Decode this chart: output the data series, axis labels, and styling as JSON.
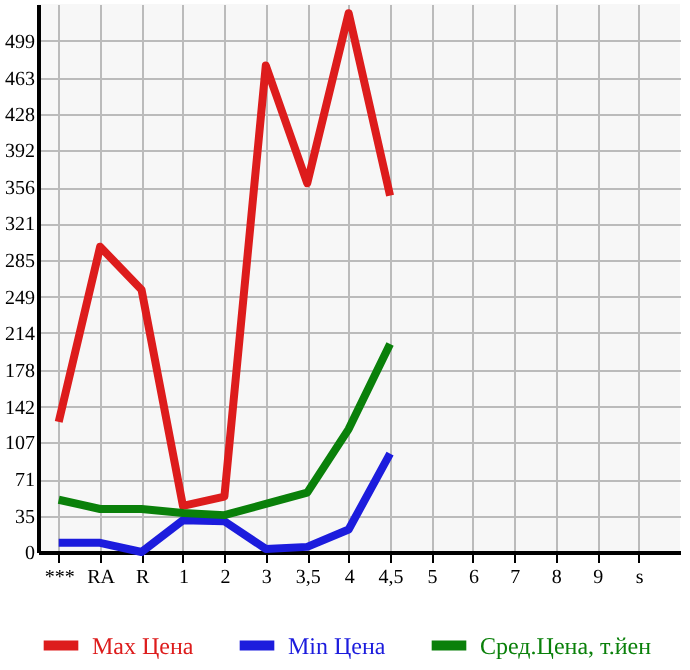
{
  "chart_data": {
    "type": "line",
    "categories": [
      "***",
      "RA",
      "R",
      "1",
      "2",
      "3",
      "3,5",
      "4",
      "4,5",
      "5",
      "6",
      "7",
      "8",
      "9",
      "s"
    ],
    "series": [
      {
        "name": "Max Цена",
        "color": "#dd1c1c",
        "values": [
          127,
          298,
          256,
          45,
          54,
          475,
          360,
          526,
          348,
          null,
          null,
          null,
          null,
          null,
          null
        ]
      },
      {
        "name": "Min Цена",
        "color": "#1c1cdd",
        "values": [
          9,
          9,
          0,
          31,
          30,
          3,
          5,
          22,
          96,
          null,
          null,
          null,
          null,
          null,
          null
        ]
      },
      {
        "name": "Сред.Цена, т.йен",
        "color": "#0a800a",
        "values": [
          51,
          42,
          42,
          38,
          36,
          47,
          58,
          120,
          203,
          null,
          null,
          null,
          null,
          null,
          null
        ]
      }
    ],
    "ylim": [
      0,
      535
    ],
    "yticks": [
      0,
      35,
      71,
      107,
      142,
      178,
      214,
      249,
      285,
      321,
      356,
      392,
      428,
      463,
      499
    ],
    "grid": true,
    "legend": "bottom",
    "marker": "none",
    "line_style": "solid"
  }
}
